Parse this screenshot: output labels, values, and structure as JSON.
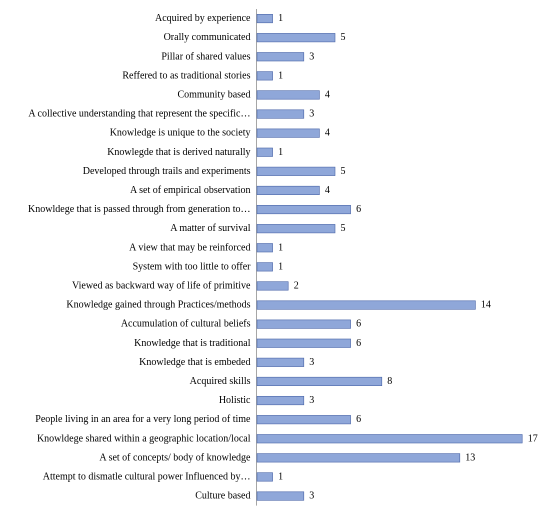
{
  "chart_data": {
    "type": "bar",
    "orientation": "horizontal",
    "bar_color": "#8FA7D9",
    "bar_stroke": "#4B66A8",
    "axis_color": "#A6A6A6",
    "xlim": [
      0,
      17
    ],
    "grid": false,
    "data_labels": true,
    "categories": [
      "Acquired by experience",
      "Orally communicated",
      "Pillar of shared values",
      "Reffered to as traditional stories",
      "Community based",
      "A collective understanding that represent the specific…",
      "Knowledge is unique to the society",
      "Knowlegde that is derived naturally",
      "Developed through trails and experiments",
      "A set of empirical observation",
      "Knowldege that is passed through from generation to…",
      "A matter of survival",
      "A view that may be reinforced",
      "System with too little to offer",
      "Viewed as backward way of life of primitive",
      "Knowledge gained through Practices/methods",
      "Accumulation of cultural beliefs",
      "Knowledge that is traditional",
      "Knowledge that is embeded",
      "Acquired skills",
      "Holistic",
      "People living in an area for a very long period of time",
      "Knowldege shared within a geographic location/local",
      "A set of concepts/ body of knowledge",
      "Attempt to dismatle cultural power Influenced by…",
      "Culture based"
    ],
    "values": [
      1,
      5,
      3,
      1,
      4,
      3,
      4,
      1,
      5,
      4,
      6,
      5,
      1,
      1,
      2,
      14,
      6,
      6,
      3,
      8,
      3,
      6,
      17,
      13,
      1,
      3
    ]
  }
}
